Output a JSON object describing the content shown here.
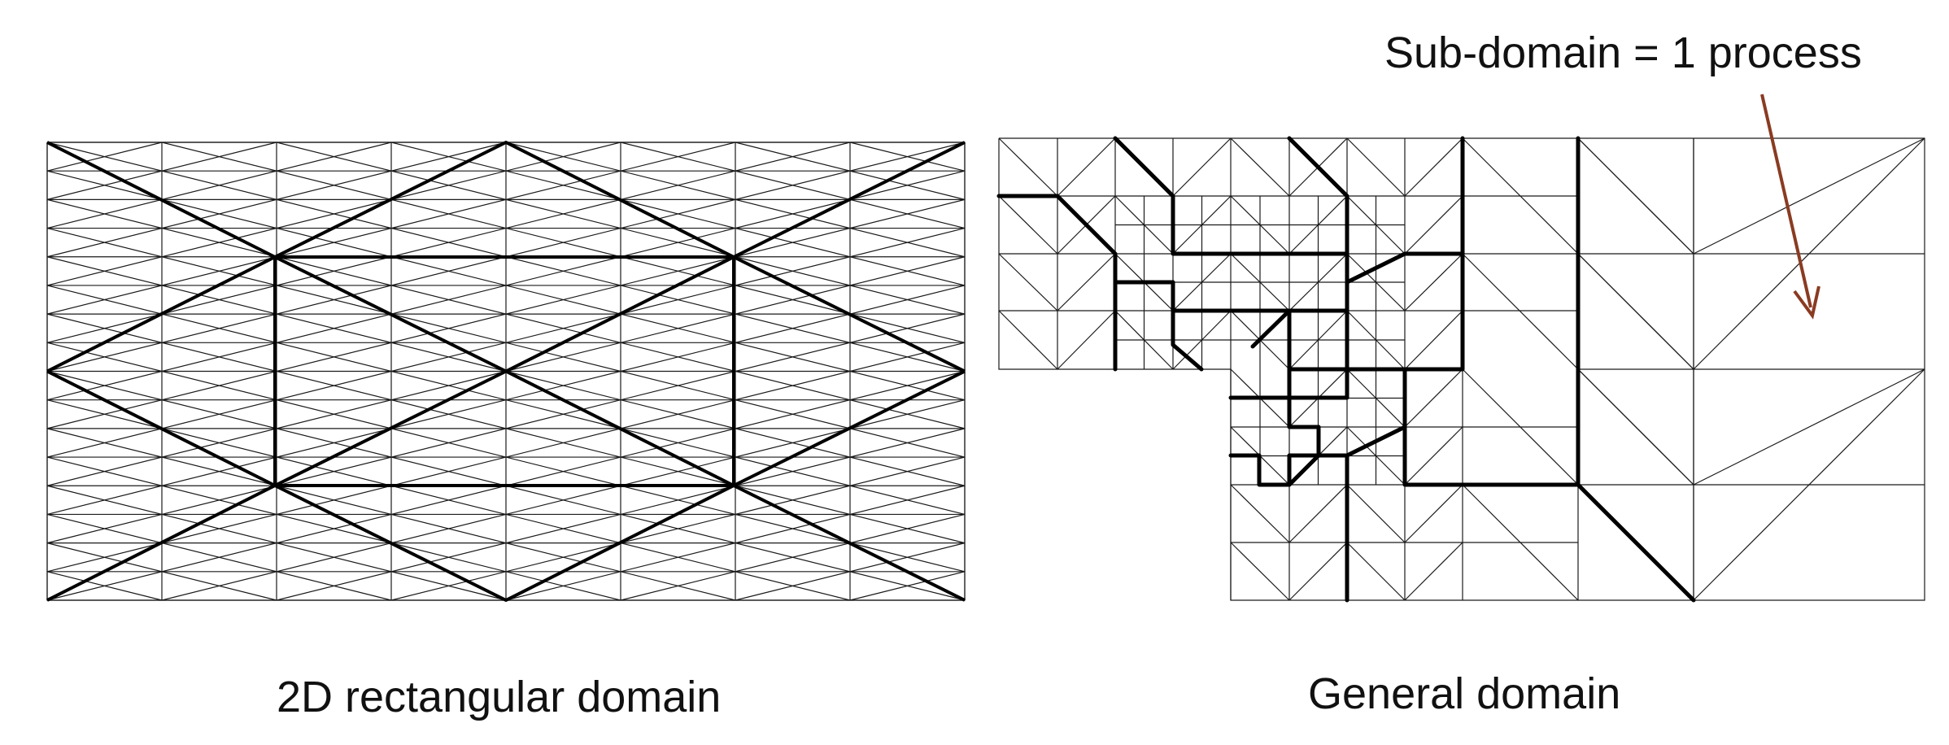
{
  "captions": {
    "left": "2D rectangular domain",
    "right": "General domain",
    "annotation": "Sub-domain = 1 process"
  },
  "colors": {
    "thin_line": "#1a1a1a",
    "thick_line": "#000000",
    "arrow": "#8a3b22",
    "background": "#ffffff"
  }
}
